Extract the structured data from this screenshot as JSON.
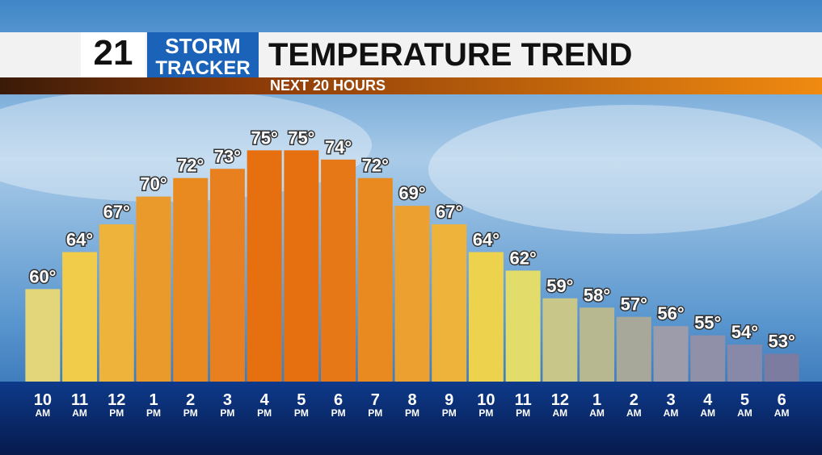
{
  "header": {
    "logo_number": "21",
    "logo_top": "STORM",
    "logo_bottom": "TRACKER"
  },
  "chart_data": {
    "type": "bar",
    "title": "TEMPERATURE TREND",
    "subtitle": "NEXT 20 HOURS",
    "categories": [
      "10",
      "11",
      "12",
      "1",
      "2",
      "3",
      "4",
      "5",
      "6",
      "7",
      "8",
      "9",
      "10",
      "11",
      "12",
      "1",
      "2",
      "3",
      "4",
      "5",
      "6"
    ],
    "periods": [
      "AM",
      "AM",
      "PM",
      "PM",
      "PM",
      "PM",
      "PM",
      "PM",
      "PM",
      "PM",
      "PM",
      "PM",
      "PM",
      "PM",
      "AM",
      "AM",
      "AM",
      "AM",
      "AM",
      "AM",
      "AM"
    ],
    "values": [
      60,
      64,
      67,
      70,
      72,
      73,
      75,
      75,
      74,
      72,
      69,
      67,
      64,
      62,
      59,
      58,
      57,
      56,
      55,
      54,
      53
    ],
    "value_labels": [
      "60°",
      "64°",
      "67°",
      "70°",
      "72°",
      "73°",
      "75°",
      "75°",
      "74°",
      "72°",
      "69°",
      "67°",
      "64°",
      "62°",
      "59°",
      "58°",
      "57°",
      "56°",
      "55°",
      "54°",
      "53°"
    ],
    "colors": [
      "#e3d67a",
      "#f0cc4a",
      "#edb33a",
      "#e99a2a",
      "#e88a20",
      "#e88020",
      "#e6700f",
      "#e6700f",
      "#e77818",
      "#e88a20",
      "#eba030",
      "#edb33a",
      "#ecd24d",
      "#e2dc6a",
      "#c9c68a",
      "#b8b890",
      "#a8a89a",
      "#9c9caa",
      "#9090a8",
      "#8888a8",
      "#7c7ca0"
    ],
    "ylim": [
      50,
      80
    ]
  }
}
